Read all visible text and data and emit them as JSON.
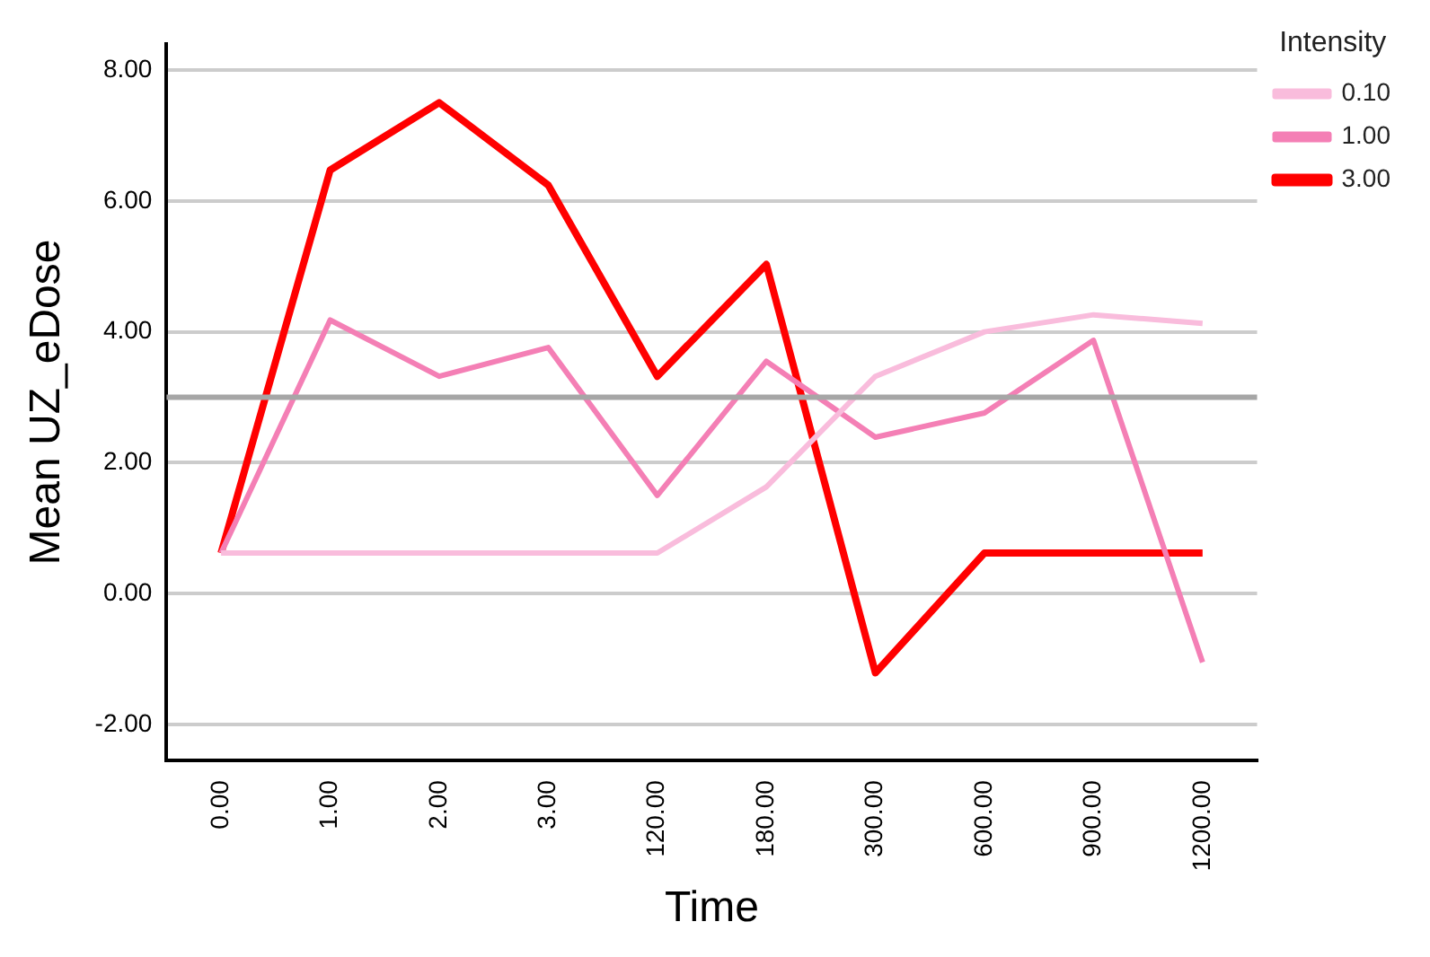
{
  "chart_data": {
    "type": "line",
    "xlabel": "Time",
    "ylabel": "Mean UZ_eDose",
    "legend_title": "Intensity",
    "categories": [
      "0.00",
      "1.00",
      "2.00",
      "3.00",
      "120.00",
      "180.00",
      "300.00",
      "600.00",
      "900.00",
      "1200.00"
    ],
    "series": [
      {
        "name": "0.10",
        "color": "#f9bcdc",
        "values": [
          0.62,
          0.62,
          0.62,
          0.62,
          0.62,
          1.63,
          3.32,
          4.0,
          4.26,
          4.13
        ]
      },
      {
        "name": "1.00",
        "color": "#f47fb5",
        "values": [
          0.62,
          4.18,
          3.32,
          3.76,
          1.5,
          3.55,
          2.39,
          2.76,
          3.87,
          -1.05
        ]
      },
      {
        "name": "3.00",
        "color": "#ff0000",
        "values": [
          0.62,
          6.47,
          7.5,
          6.24,
          3.32,
          5.03,
          -1.21,
          0.62,
          0.62,
          0.62
        ]
      }
    ],
    "ylim": [
      -2.55,
      8.4
    ],
    "yticks": [
      {
        "value": -2,
        "label": "-2.00"
      },
      {
        "value": 0,
        "label": "0.00"
      },
      {
        "value": 2,
        "label": "2.00"
      },
      {
        "value": 4,
        "label": "4.00"
      },
      {
        "value": 6,
        "label": "6.00"
      },
      {
        "value": 8,
        "label": "8.00"
      }
    ],
    "ref_lines": [
      {
        "axis": "y",
        "value": 3,
        "color": "#a6a6a6"
      }
    ],
    "grid": "y",
    "legend": "top right",
    "line_style": "solid",
    "marker": "none"
  }
}
